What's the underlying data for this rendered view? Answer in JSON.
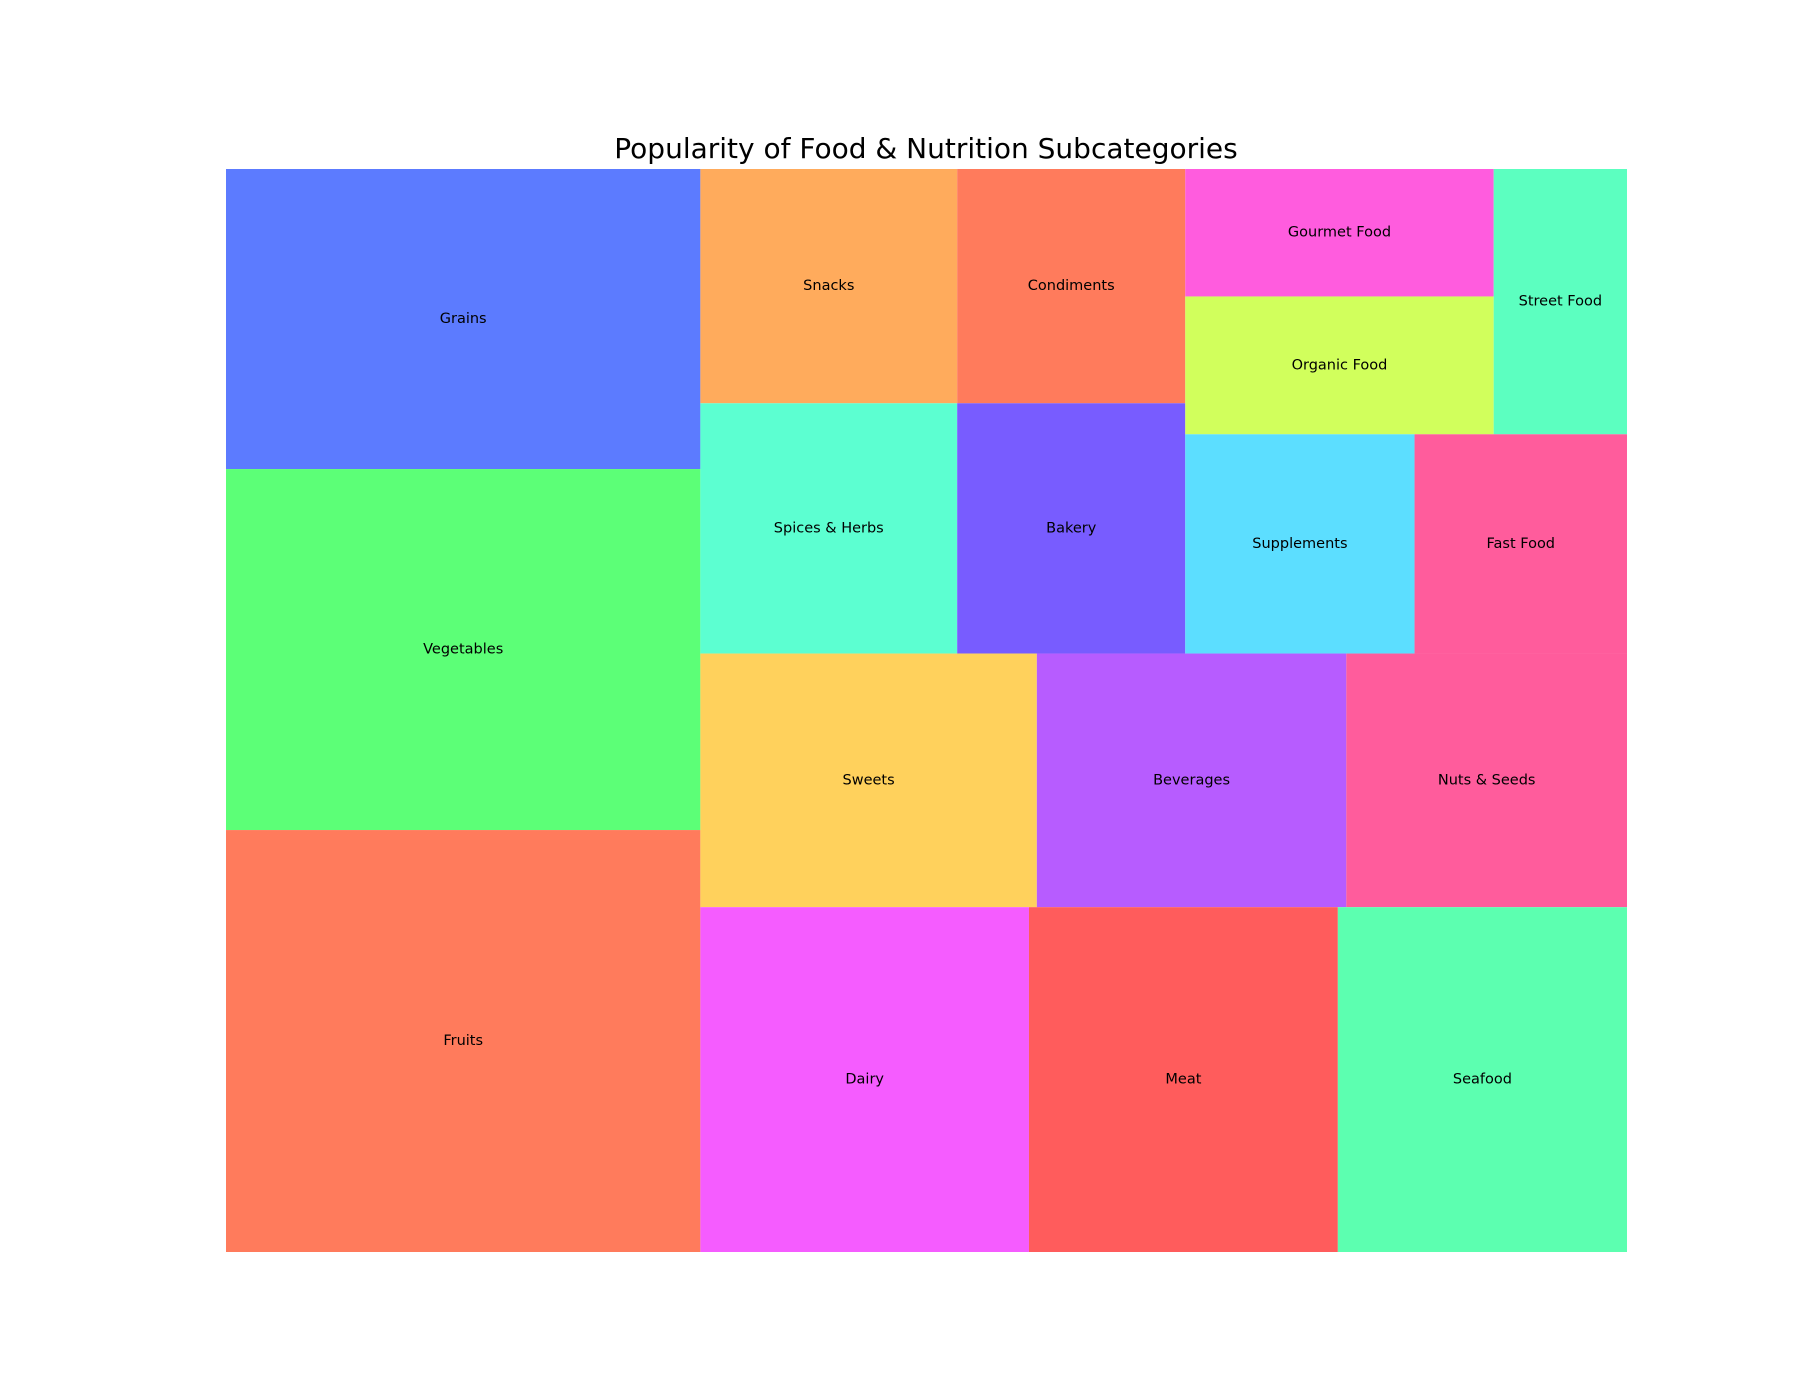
{
  "chart_data": {
    "type": "treemap",
    "title": "Popularity of Food & Nutrition Subcategories",
    "xlabel": "",
    "ylabel": "",
    "grid": false,
    "legend": "none",
    "items": [
      {
        "label": "Fruits",
        "value": 45,
        "color": "#FF7B5C"
      },
      {
        "label": "Vegetables",
        "value": 38.5,
        "color": "#5CFF77"
      },
      {
        "label": "Grains",
        "value": 32,
        "color": "#5C7BFF"
      },
      {
        "label": "Dairy",
        "value": 25,
        "color": "#F55CFF"
      },
      {
        "label": "Meat",
        "value": 23.5,
        "color": "#FF5C5C"
      },
      {
        "label": "Seafood",
        "value": 22,
        "color": "#5CFFB0"
      },
      {
        "label": "Sweets",
        "value": 18.7,
        "color": "#FFD15C"
      },
      {
        "label": "Beverages",
        "value": 17.2,
        "color": "#B75CFF"
      },
      {
        "label": "Nuts & Seeds",
        "value": 15.6,
        "color": "#FF5C9C"
      },
      {
        "label": "Spices & Herbs",
        "value": 14.1,
        "color": "#5CFFD1"
      },
      {
        "label": "Bakery",
        "value": 12.5,
        "color": "#785CFF"
      },
      {
        "label": "Snacks",
        "value": 13.2,
        "color": "#FFAB5C"
      },
      {
        "label": "Condiments",
        "value": 11.7,
        "color": "#FF7B5C"
      },
      {
        "label": "Supplements",
        "value": 10.9,
        "color": "#5CDEFF"
      },
      {
        "label": "Fast Food",
        "value": 10.1,
        "color": "#FF5C9C"
      },
      {
        "label": "Organic Food",
        "value": 9.3,
        "color": "#D1FF5C"
      },
      {
        "label": "Gourmet Food",
        "value": 8.6,
        "color": "#FF5CDE"
      },
      {
        "label": "Street Food",
        "value": 7.8,
        "color": "#5CFFC0"
      }
    ]
  }
}
